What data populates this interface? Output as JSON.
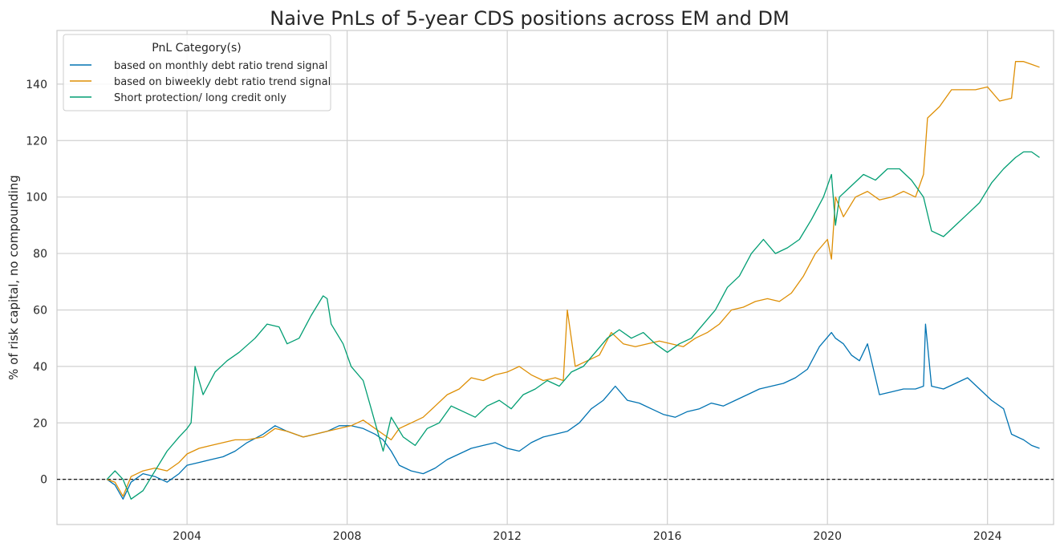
{
  "chart_data": {
    "type": "line",
    "title": "Naive PnLs of 5-year CDS positions across EM and DM",
    "xlabel": "",
    "ylabel": "% of risk capital, no compounding",
    "xlim": [
      2000.75,
      2025.65
    ],
    "ylim": [
      -16,
      159
    ],
    "x_ticks": [
      "2004",
      "2008",
      "2012",
      "2016",
      "2020",
      "2024"
    ],
    "y_ticks": [
      "0",
      "20",
      "40",
      "60",
      "80",
      "100",
      "120",
      "140"
    ],
    "grid": true,
    "zero_line": {
      "y": 0,
      "style": "dashed",
      "color": "#000000"
    },
    "legend": {
      "title": "PnL Category(s)",
      "position": "top-left"
    },
    "series": [
      {
        "name": "based on monthly debt ratio trend signal",
        "color": "#0173b2",
        "x": [
          2002.0,
          2002.2,
          2002.4,
          2002.6,
          2002.9,
          2003.2,
          2003.5,
          2003.8,
          2004.0,
          2004.3,
          2004.6,
          2004.9,
          2005.2,
          2005.5,
          2005.9,
          2006.2,
          2006.5,
          2006.9,
          2007.2,
          2007.5,
          2007.8,
          2008.1,
          2008.4,
          2008.7,
          2008.9,
          2009.1,
          2009.3,
          2009.6,
          2009.9,
          2010.2,
          2010.5,
          2010.8,
          2011.1,
          2011.4,
          2011.7,
          2012.0,
          2012.3,
          2012.6,
          2012.9,
          2013.2,
          2013.5,
          2013.8,
          2014.1,
          2014.4,
          2014.7,
          2015.0,
          2015.3,
          2015.6,
          2015.9,
          2016.2,
          2016.5,
          2016.8,
          2017.1,
          2017.4,
          2017.7,
          2018.0,
          2018.3,
          2018.6,
          2018.9,
          2019.2,
          2019.5,
          2019.8,
          2020.1,
          2020.2,
          2020.4,
          2020.6,
          2020.8,
          2021.0,
          2021.3,
          2021.6,
          2021.9,
          2022.2,
          2022.4,
          2022.45,
          2022.6,
          2022.9,
          2023.2,
          2023.5,
          2023.8,
          2024.1,
          2024.4,
          2024.6,
          2024.9,
          2025.1,
          2025.3
        ],
        "values": [
          0,
          -2,
          -7,
          -1,
          2,
          1,
          -1,
          2,
          5,
          6,
          7,
          8,
          10,
          13,
          16,
          19,
          17,
          15,
          16,
          17,
          19,
          19,
          18,
          16,
          14,
          10,
          5,
          3,
          2,
          4,
          7,
          9,
          11,
          12,
          13,
          11,
          10,
          13,
          15,
          16,
          17,
          20,
          25,
          28,
          33,
          28,
          27,
          25,
          23,
          22,
          24,
          25,
          27,
          26,
          28,
          30,
          32,
          33,
          34,
          36,
          39,
          47,
          52,
          50,
          48,
          44,
          42,
          48,
          30,
          31,
          32,
          32,
          33,
          55,
          33,
          32,
          34,
          36,
          32,
          28,
          25,
          16,
          14,
          12,
          11
        ]
      },
      {
        "name": "based on biweekly debt ratio trend signal",
        "color": "#de8f05",
        "x": [
          2002.0,
          2002.2,
          2002.4,
          2002.6,
          2002.9,
          2003.2,
          2003.5,
          2003.8,
          2004.0,
          2004.3,
          2004.6,
          2004.9,
          2005.2,
          2005.5,
          2005.9,
          2006.2,
          2006.5,
          2006.9,
          2007.2,
          2007.5,
          2007.8,
          2008.1,
          2008.4,
          2008.7,
          2008.9,
          2009.1,
          2009.3,
          2009.6,
          2009.9,
          2010.2,
          2010.5,
          2010.8,
          2011.1,
          2011.4,
          2011.7,
          2012.0,
          2012.3,
          2012.6,
          2012.9,
          2013.2,
          2013.4,
          2013.5,
          2013.7,
          2014.0,
          2014.3,
          2014.6,
          2014.9,
          2015.2,
          2015.5,
          2015.8,
          2016.1,
          2016.4,
          2016.7,
          2017.0,
          2017.3,
          2017.6,
          2017.9,
          2018.2,
          2018.5,
          2018.8,
          2019.1,
          2019.4,
          2019.7,
          2020.0,
          2020.1,
          2020.2,
          2020.4,
          2020.7,
          2021.0,
          2021.3,
          2021.6,
          2021.9,
          2022.2,
          2022.4,
          2022.5,
          2022.8,
          2023.1,
          2023.4,
          2023.7,
          2024.0,
          2024.3,
          2024.6,
          2024.7,
          2024.9,
          2025.1,
          2025.3
        ],
        "values": [
          0,
          -1,
          -6,
          1,
          3,
          4,
          3,
          6,
          9,
          11,
          12,
          13,
          14,
          14,
          15,
          18,
          17,
          15,
          16,
          17,
          18,
          19,
          21,
          18,
          16,
          14,
          18,
          20,
          22,
          26,
          30,
          32,
          36,
          35,
          37,
          38,
          40,
          37,
          35,
          36,
          35,
          60,
          40,
          42,
          44,
          52,
          48,
          47,
          48,
          49,
          48,
          47,
          50,
          52,
          55,
          60,
          61,
          63,
          64,
          63,
          66,
          72,
          80,
          85,
          78,
          100,
          93,
          100,
          102,
          99,
          100,
          102,
          100,
          108,
          128,
          132,
          138,
          138,
          138,
          139,
          134,
          135,
          148,
          148,
          147,
          146
        ]
      },
      {
        "name": "Short protection/ long credit only",
        "color": "#029e73",
        "x": [
          2002.0,
          2002.2,
          2002.4,
          2002.6,
          2002.9,
          2003.2,
          2003.5,
          2003.8,
          2004.0,
          2004.1,
          2004.2,
          2004.4,
          2004.7,
          2005.0,
          2005.3,
          2005.7,
          2006.0,
          2006.3,
          2006.5,
          2006.8,
          2007.1,
          2007.4,
          2007.5,
          2007.6,
          2007.9,
          2008.1,
          2008.4,
          2008.6,
          2008.8,
          2008.9,
          2009.1,
          2009.4,
          2009.7,
          2010.0,
          2010.3,
          2010.6,
          2010.9,
          2011.2,
          2011.5,
          2011.8,
          2012.1,
          2012.4,
          2012.7,
          2013.0,
          2013.3,
          2013.6,
          2013.9,
          2014.2,
          2014.5,
          2014.8,
          2015.1,
          2015.4,
          2015.7,
          2016.0,
          2016.3,
          2016.6,
          2016.9,
          2017.2,
          2017.5,
          2017.8,
          2018.1,
          2018.4,
          2018.7,
          2019.0,
          2019.3,
          2019.6,
          2019.9,
          2020.1,
          2020.2,
          2020.3,
          2020.6,
          2020.9,
          2021.2,
          2021.5,
          2021.8,
          2022.1,
          2022.4,
          2022.6,
          2022.9,
          2023.2,
          2023.5,
          2023.8,
          2024.1,
          2024.4,
          2024.7,
          2024.9,
          2025.1,
          2025.3
        ],
        "values": [
          0,
          3,
          0,
          -7,
          -4,
          3,
          10,
          15,
          18,
          20,
          40,
          30,
          38,
          42,
          45,
          50,
          55,
          54,
          48,
          50,
          58,
          65,
          64,
          55,
          48,
          40,
          35,
          25,
          15,
          10,
          22,
          15,
          12,
          18,
          20,
          26,
          24,
          22,
          26,
          28,
          25,
          30,
          32,
          35,
          33,
          38,
          40,
          45,
          50,
          53,
          50,
          52,
          48,
          45,
          48,
          50,
          55,
          60,
          68,
          72,
          80,
          85,
          80,
          82,
          85,
          92,
          100,
          108,
          90,
          100,
          104,
          108,
          106,
          110,
          110,
          106,
          100,
          88,
          86,
          90,
          94,
          98,
          105,
          110,
          114,
          116,
          116,
          114
        ]
      }
    ]
  }
}
